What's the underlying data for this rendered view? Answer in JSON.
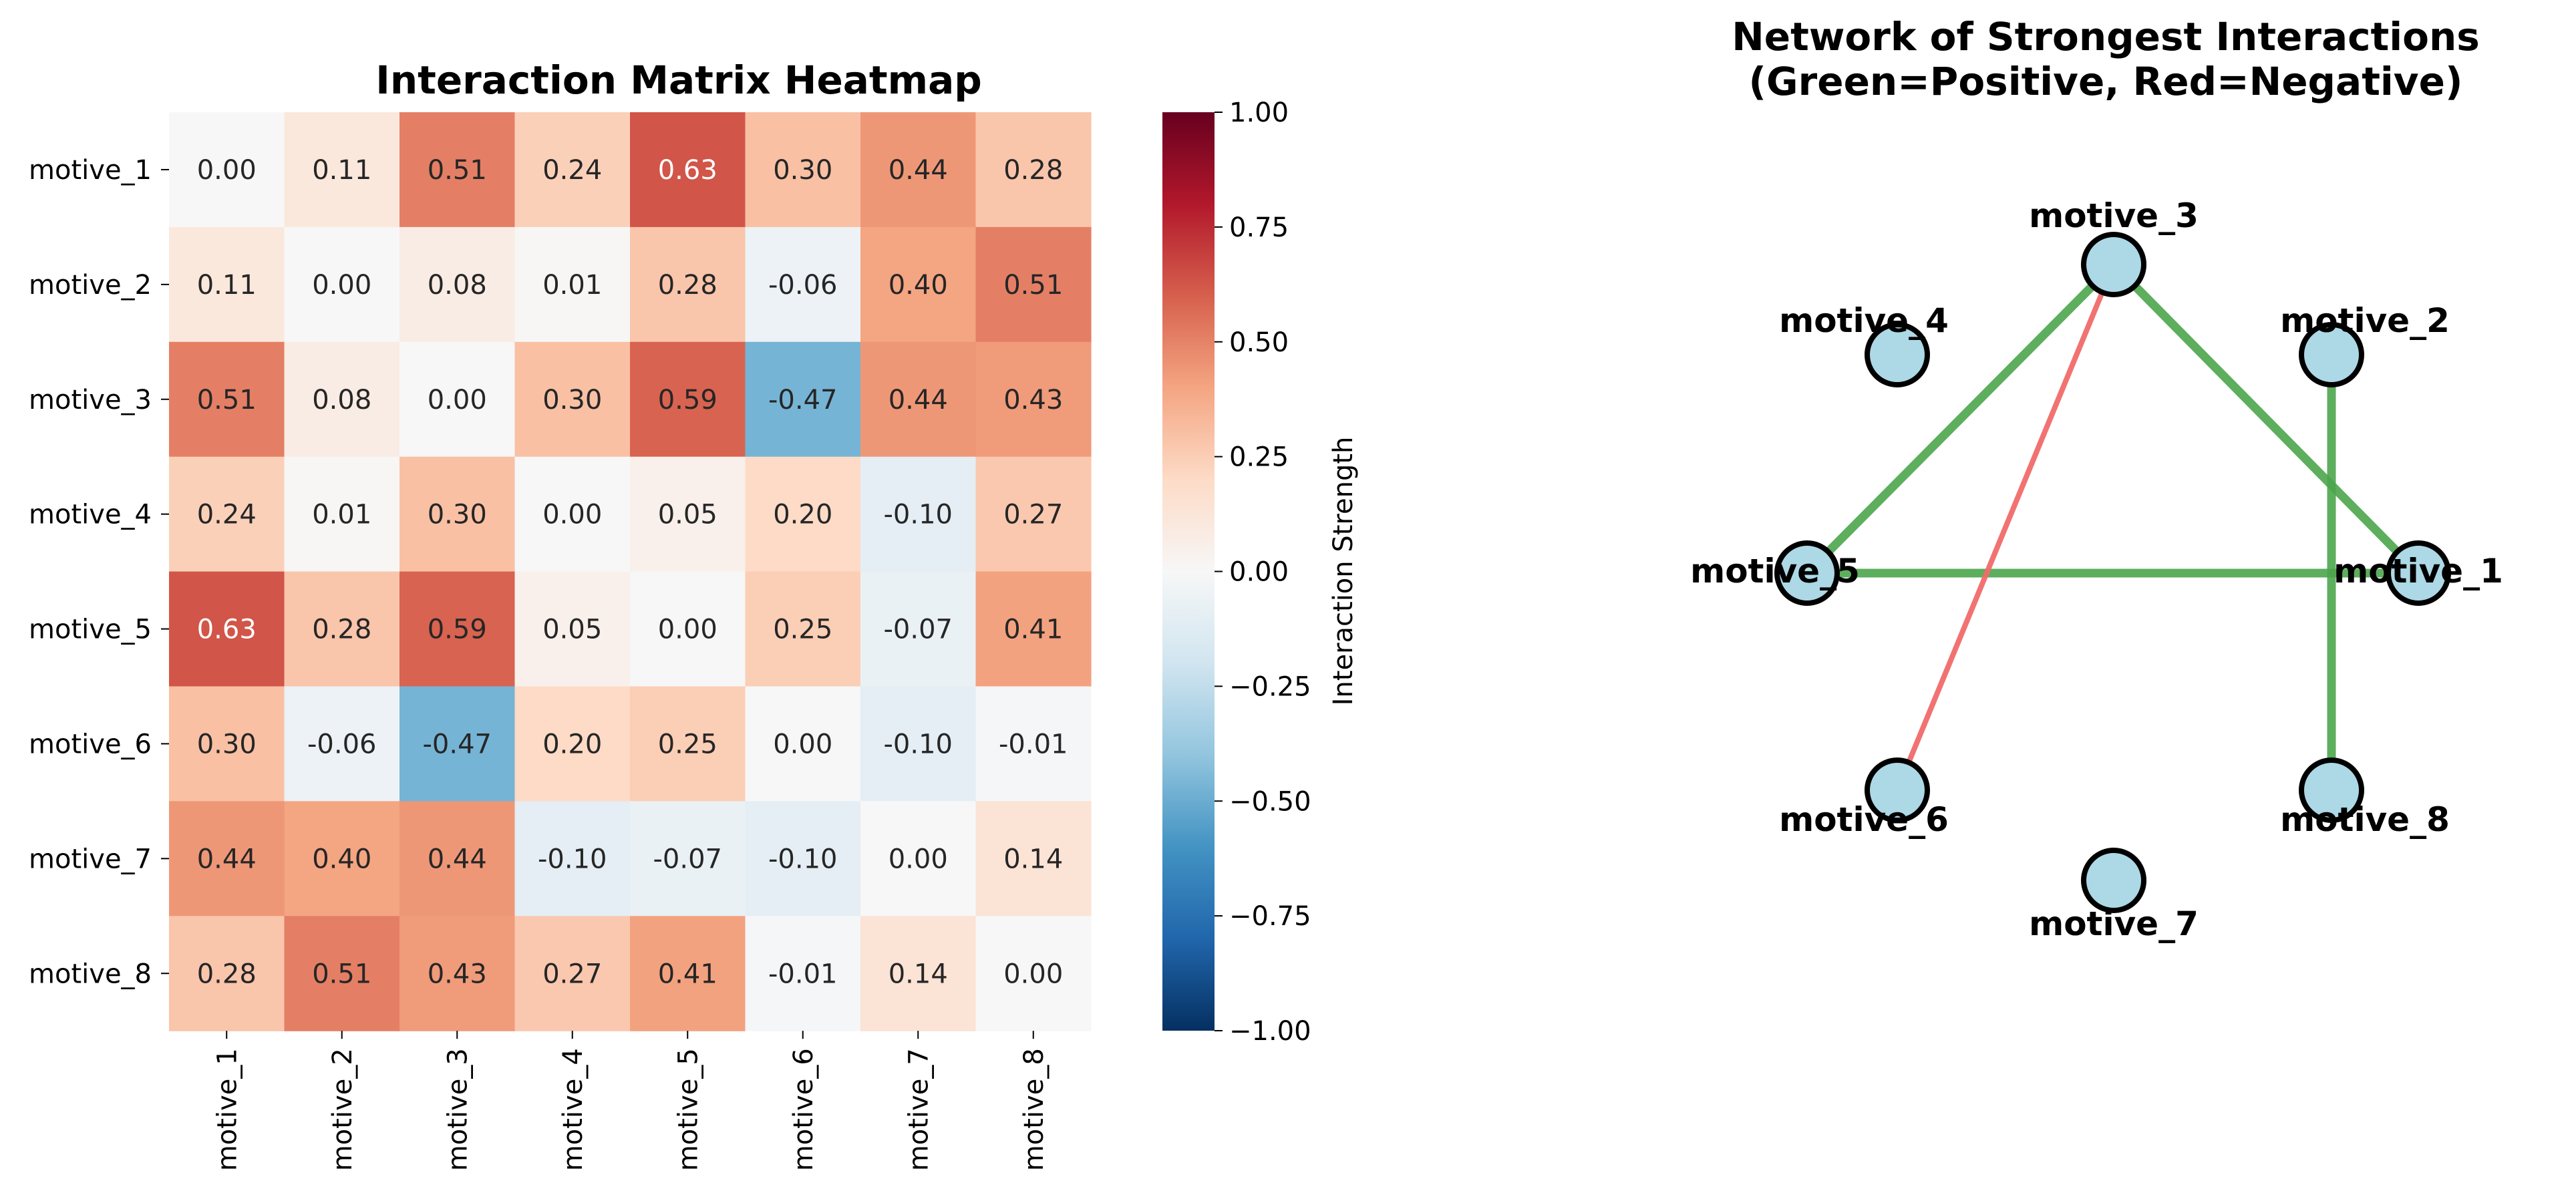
{
  "chart_data": [
    {
      "type": "heatmap",
      "title": "Interaction Matrix Heatmap",
      "row_labels": [
        "motive_1",
        "motive_2",
        "motive_3",
        "motive_4",
        "motive_5",
        "motive_6",
        "motive_7",
        "motive_8"
      ],
      "col_labels": [
        "motive_1",
        "motive_2",
        "motive_3",
        "motive_4",
        "motive_5",
        "motive_6",
        "motive_7",
        "motive_8"
      ],
      "values": [
        [
          0.0,
          0.11,
          0.51,
          0.24,
          0.63,
          0.3,
          0.44,
          0.28
        ],
        [
          0.11,
          0.0,
          0.08,
          0.01,
          0.28,
          -0.06,
          0.4,
          0.51
        ],
        [
          0.51,
          0.08,
          0.0,
          0.3,
          0.59,
          -0.47,
          0.44,
          0.43
        ],
        [
          0.24,
          0.01,
          0.3,
          0.0,
          0.05,
          0.2,
          -0.1,
          0.27
        ],
        [
          0.63,
          0.28,
          0.59,
          0.05,
          0.0,
          0.25,
          -0.07,
          0.41
        ],
        [
          0.3,
          -0.06,
          -0.47,
          0.2,
          0.25,
          0.0,
          -0.1,
          -0.01
        ],
        [
          0.44,
          0.4,
          0.44,
          -0.1,
          -0.07,
          -0.1,
          0.0,
          0.14
        ],
        [
          0.28,
          0.51,
          0.43,
          0.27,
          0.41,
          -0.01,
          0.14,
          0.0
        ]
      ],
      "value_format": "2 decimals",
      "colormap": "RdBu_r",
      "colorbar": {
        "label": "Interaction Strength",
        "range": [
          -1.0,
          1.0
        ],
        "ticks": [
          "1.00",
          "0.75",
          "0.50",
          "0.25",
          "0.00",
          "−0.25",
          "−0.50",
          "−0.75",
          "−1.00"
        ]
      }
    },
    {
      "type": "network",
      "title_line1": "Network of Strongest Interactions",
      "title_line2": "(Green=Positive, Red=Negative)",
      "nodes": [
        "motive_1",
        "motive_2",
        "motive_3",
        "motive_4",
        "motive_5",
        "motive_6",
        "motive_7",
        "motive_8"
      ],
      "edges": [
        {
          "source": "motive_3",
          "target": "motive_5",
          "sign": "positive",
          "value": 0.59
        },
        {
          "source": "motive_3",
          "target": "motive_1",
          "sign": "positive",
          "value": 0.51
        },
        {
          "source": "motive_5",
          "target": "motive_1",
          "sign": "positive",
          "value": 0.63
        },
        {
          "source": "motive_2",
          "target": "motive_8",
          "sign": "positive",
          "value": 0.51
        },
        {
          "source": "motive_3",
          "target": "motive_6",
          "sign": "negative",
          "value": -0.47
        }
      ],
      "colors": {
        "positive": "#4ca64c",
        "negative": "#f26b6b",
        "node_fill": "#add8e6",
        "node_edge": "#000000"
      }
    }
  ]
}
